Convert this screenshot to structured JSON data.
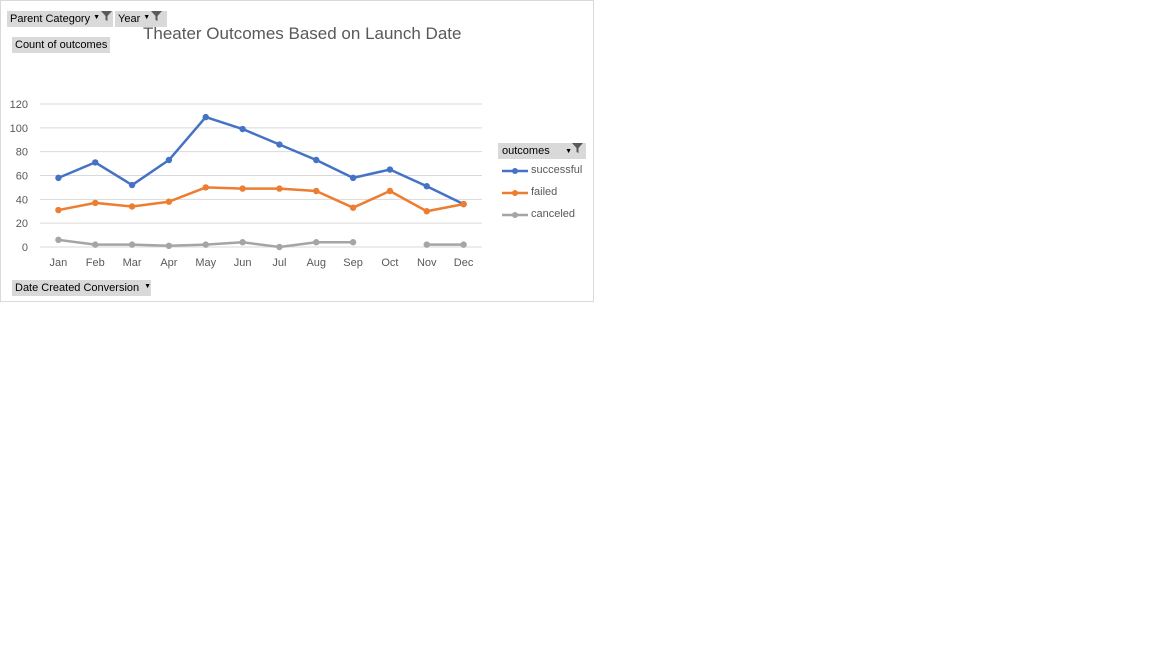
{
  "filters": {
    "parent_category": "Parent Category",
    "year": "Year",
    "values_field": "Count of outcomes",
    "axis_field": "Date Created Conversion",
    "legend_field": "outcomes"
  },
  "colors": {
    "successful": "#4472c4",
    "failed": "#ed7d31",
    "canceled": "#a5a5a5",
    "gridline": "#d9d9d9",
    "button_bg": "#d9d9d9"
  },
  "chart_data": {
    "type": "line",
    "title": "Theater Outcomes Based on Launch Date",
    "xlabel": "",
    "ylabel": "",
    "categories": [
      "Jan",
      "Feb",
      "Mar",
      "Apr",
      "May",
      "Jun",
      "Jul",
      "Aug",
      "Sep",
      "Oct",
      "Nov",
      "Dec"
    ],
    "yticks": [
      0,
      20,
      40,
      60,
      80,
      100,
      120
    ],
    "ylim": [
      0,
      120
    ],
    "grid": true,
    "legend_position": "right",
    "series": [
      {
        "name": "successful",
        "color_key": "successful",
        "values": [
          58,
          71,
          52,
          73,
          109,
          99,
          86,
          73,
          58,
          65,
          51,
          36
        ]
      },
      {
        "name": "failed",
        "color_key": "failed",
        "values": [
          31,
          37,
          34,
          38,
          50,
          49,
          49,
          47,
          33,
          47,
          30,
          36
        ]
      },
      {
        "name": "canceled",
        "color_key": "canceled",
        "values": [
          6,
          2,
          2,
          1,
          2,
          4,
          0,
          4,
          4,
          null,
          2,
          2
        ]
      }
    ]
  }
}
